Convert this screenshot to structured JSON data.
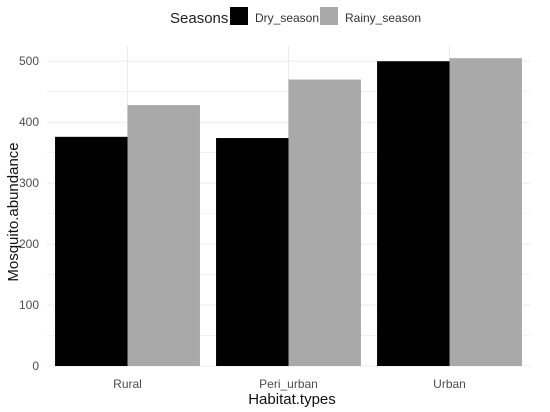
{
  "chart_data": {
    "type": "bar",
    "title": "",
    "xlabel": "Habitat.types",
    "ylabel": "Mosquito.abundance",
    "categories": [
      "Rural",
      "Peri_urban",
      "Urban"
    ],
    "series": [
      {
        "name": "Dry_season",
        "values": [
          376,
          374,
          500
        ]
      },
      {
        "name": "Rainy_season",
        "values": [
          428,
          470,
          505
        ]
      }
    ],
    "ylim": [
      0,
      525
    ],
    "yticks": [
      0,
      100,
      200,
      300,
      400,
      500
    ],
    "legend": {
      "title": "Seasons",
      "position": "top"
    },
    "grid": true,
    "colors": {
      "Dry_season": "#000000",
      "Rainy_season": "#a9a9a9",
      "grid": "#ebebeb"
    }
  }
}
